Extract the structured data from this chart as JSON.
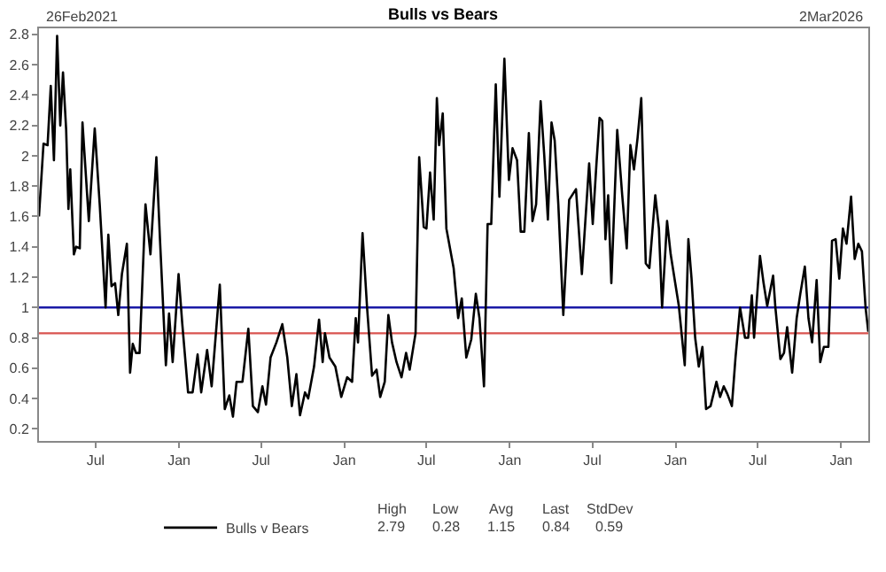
{
  "chart_data": {
    "type": "line",
    "title": "Bulls vs Bears",
    "x": [
      "2021-02-26",
      "2021-03-08",
      "2021-03-17",
      "2021-03-24",
      "2021-03-31",
      "2021-04-07",
      "2021-04-14",
      "2021-04-20",
      "2021-04-27",
      "2021-05-02",
      "2021-05-06",
      "2021-05-14",
      "2021-05-19",
      "2021-05-27",
      "2021-06-02",
      "2021-06-16",
      "2021-06-29",
      "2021-07-10",
      "2021-07-23",
      "2021-07-29",
      "2021-08-05",
      "2021-08-13",
      "2021-08-20",
      "2021-08-28",
      "2021-09-08",
      "2021-09-15",
      "2021-09-21",
      "2021-09-28",
      "2021-10-06",
      "2021-10-19",
      "2021-10-30",
      "2021-11-12",
      "2021-11-20",
      "2021-12-03",
      "2021-12-10",
      "2021-12-18",
      "2021-12-31",
      "2022-01-08",
      "2022-01-21",
      "2022-01-31",
      "2022-02-11",
      "2022-02-19",
      "2022-03-04",
      "2022-03-14",
      "2022-04-01",
      "2022-04-12",
      "2022-04-22",
      "2022-04-30",
      "2022-05-08",
      "2022-05-21",
      "2022-06-03",
      "2022-06-13",
      "2022-06-24",
      "2022-07-04",
      "2022-07-12",
      "2022-07-22",
      "2022-08-04",
      "2022-08-17",
      "2022-08-28",
      "2022-09-07",
      "2022-09-17",
      "2022-09-25",
      "2022-10-06",
      "2022-10-13",
      "2022-10-26",
      "2022-11-06",
      "2022-11-14",
      "2022-11-19",
      "2022-11-29",
      "2022-12-12",
      "2022-12-25",
      "2023-01-07",
      "2023-01-18",
      "2023-01-26",
      "2023-01-31",
      "2023-02-10",
      "2023-02-20",
      "2023-03-03",
      "2023-03-13",
      "2023-03-21",
      "2023-03-31",
      "2023-04-08",
      "2023-04-16",
      "2023-04-26",
      "2023-05-07",
      "2023-05-17",
      "2023-05-25",
      "2023-06-07",
      "2023-06-15",
      "2023-06-25",
      "2023-07-01",
      "2023-07-09",
      "2023-07-17",
      "2023-07-24",
      "2023-07-29",
      "2023-08-06",
      "2023-08-14",
      "2023-08-30",
      "2023-09-09",
      "2023-09-17",
      "2023-09-27",
      "2023-10-08",
      "2023-10-18",
      "2023-10-26",
      "2023-11-05",
      "2023-11-13",
      "2023-11-21",
      "2023-12-01",
      "2023-12-09",
      "2023-12-20",
      "2023-12-30",
      "2024-01-07",
      "2024-01-17",
      "2024-01-25",
      "2024-02-02",
      "2024-02-12",
      "2024-02-20",
      "2024-02-28",
      "2024-03-09",
      "2024-03-17",
      "2024-03-25",
      "2024-04-02",
      "2024-04-09",
      "2024-04-17",
      "2024-04-28",
      "2024-05-11",
      "2024-05-26",
      "2024-06-08",
      "2024-06-24",
      "2024-07-02",
      "2024-07-10",
      "2024-07-17",
      "2024-07-23",
      "2024-07-30",
      "2024-08-05",
      "2024-08-12",
      "2024-08-25",
      "2024-09-05",
      "2024-09-15",
      "2024-09-23",
      "2024-10-01",
      "2024-10-09",
      "2024-10-17",
      "2024-10-27",
      "2024-11-04",
      "2024-11-17",
      "2024-11-25",
      "2024-12-02",
      "2024-12-13",
      "2024-12-21",
      "2024-12-31",
      "2025-01-08",
      "2025-01-21",
      "2025-01-29",
      "2025-02-05",
      "2025-02-13",
      "2025-02-21",
      "2025-03-01",
      "2025-03-09",
      "2025-03-19",
      "2025-04-01",
      "2025-04-09",
      "2025-04-17",
      "2025-04-25",
      "2025-05-05",
      "2025-05-13",
      "2025-05-23",
      "2025-06-03",
      "2025-06-10",
      "2025-06-18",
      "2025-06-23",
      "2025-07-06",
      "2025-07-14",
      "2025-07-22",
      "2025-08-04",
      "2025-08-09",
      "2025-08-20",
      "2025-08-28",
      "2025-09-04",
      "2025-09-15",
      "2025-09-25",
      "2025-10-03",
      "2025-10-13",
      "2025-10-21",
      "2025-10-29",
      "2025-11-08",
      "2025-11-16",
      "2025-11-24",
      "2025-12-04",
      "2025-12-12",
      "2025-12-20",
      "2025-12-28",
      "2026-01-05",
      "2026-01-13",
      "2026-01-23",
      "2026-01-31",
      "2026-02-08",
      "2026-02-16",
      "2026-02-24",
      "2026-03-02"
    ],
    "series": [
      {
        "name": "Bulls v Bears",
        "color": "#000000",
        "values": [
          1.6,
          2.08,
          2.07,
          2.46,
          1.97,
          2.79,
          2.2,
          2.55,
          2.17,
          1.65,
          1.91,
          1.35,
          1.4,
          1.39,
          2.22,
          1.57,
          2.18,
          1.68,
          1.0,
          1.48,
          1.14,
          1.16,
          0.95,
          1.22,
          1.42,
          0.57,
          0.76,
          0.7,
          0.7,
          1.68,
          1.35,
          1.99,
          1.45,
          0.62,
          0.96,
          0.64,
          1.22,
          0.9,
          0.44,
          0.44,
          0.69,
          0.44,
          0.72,
          0.48,
          1.15,
          0.33,
          0.42,
          0.28,
          0.51,
          0.51,
          0.86,
          0.35,
          0.31,
          0.48,
          0.36,
          0.67,
          0.77,
          0.89,
          0.67,
          0.35,
          0.56,
          0.29,
          0.44,
          0.4,
          0.61,
          0.92,
          0.64,
          0.83,
          0.67,
          0.61,
          0.41,
          0.54,
          0.51,
          0.93,
          0.77,
          1.49,
          1.0,
          0.55,
          0.59,
          0.41,
          0.51,
          0.95,
          0.77,
          0.64,
          0.54,
          0.7,
          0.59,
          0.83,
          1.99,
          1.53,
          1.52,
          1.89,
          1.58,
          2.38,
          2.07,
          2.28,
          1.52,
          1.26,
          0.93,
          1.06,
          0.67,
          0.79,
          1.09,
          0.93,
          0.48,
          1.55,
          1.55,
          2.47,
          1.73,
          2.64,
          1.84,
          2.05,
          1.97,
          1.5,
          1.5,
          2.15,
          1.57,
          1.68,
          2.36,
          2.0,
          1.58,
          2.22,
          2.1,
          1.68,
          0.95,
          1.71,
          1.78,
          1.22,
          1.95,
          1.55,
          1.94,
          2.25,
          2.23,
          1.45,
          1.74,
          1.16,
          2.17,
          1.74,
          1.39,
          2.07,
          1.91,
          2.12,
          2.38,
          1.29,
          1.26,
          1.74,
          1.52,
          1.0,
          1.57,
          1.35,
          1.16,
          1.01,
          0.62,
          1.45,
          1.19,
          0.8,
          0.61,
          0.74,
          0.33,
          0.35,
          0.51,
          0.41,
          0.48,
          0.43,
          0.35,
          0.67,
          1.0,
          0.8,
          0.8,
          1.08,
          0.8,
          1.34,
          1.16,
          1.01,
          1.21,
          1.0,
          0.66,
          0.7,
          0.87,
          0.57,
          0.93,
          1.09,
          1.27,
          0.93,
          0.77,
          1.18,
          0.64,
          0.74,
          0.74,
          1.44,
          1.45,
          1.19,
          1.52,
          1.42,
          1.73,
          1.32,
          1.42,
          1.37,
          1.0,
          0.84
        ]
      }
    ],
    "xlim": [
      "2021-02-26",
      "2026-03-02"
    ],
    "xticks": [
      {
        "value": "2021-07-01",
        "label": "Jul"
      },
      {
        "value": "2022-01-01",
        "label": "Jan"
      },
      {
        "value": "2022-07-01",
        "label": "Jul"
      },
      {
        "value": "2023-01-01",
        "label": "Jan"
      },
      {
        "value": "2023-07-01",
        "label": "Jul"
      },
      {
        "value": "2024-01-01",
        "label": "Jan"
      },
      {
        "value": "2024-07-01",
        "label": "Jul"
      },
      {
        "value": "2025-01-01",
        "label": "Jan"
      },
      {
        "value": "2025-07-01",
        "label": "Jul"
      },
      {
        "value": "2026-01-01",
        "label": "Jan"
      }
    ],
    "ylim": [
      0.12,
      2.84
    ],
    "yticks": [
      0.2,
      0.4,
      0.6,
      0.8,
      1,
      1.2,
      1.4,
      1.6,
      1.8,
      2,
      2.2,
      2.4,
      2.6,
      2.8
    ],
    "ref_lines": [
      {
        "axis": "y",
        "value": 1,
        "color": "#1a1aa6"
      },
      {
        "axis": "y",
        "value": 0.83,
        "color": "#d9534f"
      }
    ],
    "annotations": [
      "26Feb2021",
      "2Mar2026",
      "High",
      "Low",
      "Avg",
      "Last",
      "StdDev",
      "2.79",
      "0.28",
      "1.15",
      "0.84",
      "0.59"
    ],
    "legend": "bottom",
    "grid": false,
    "marker": "none",
    "line_style": "solid"
  }
}
